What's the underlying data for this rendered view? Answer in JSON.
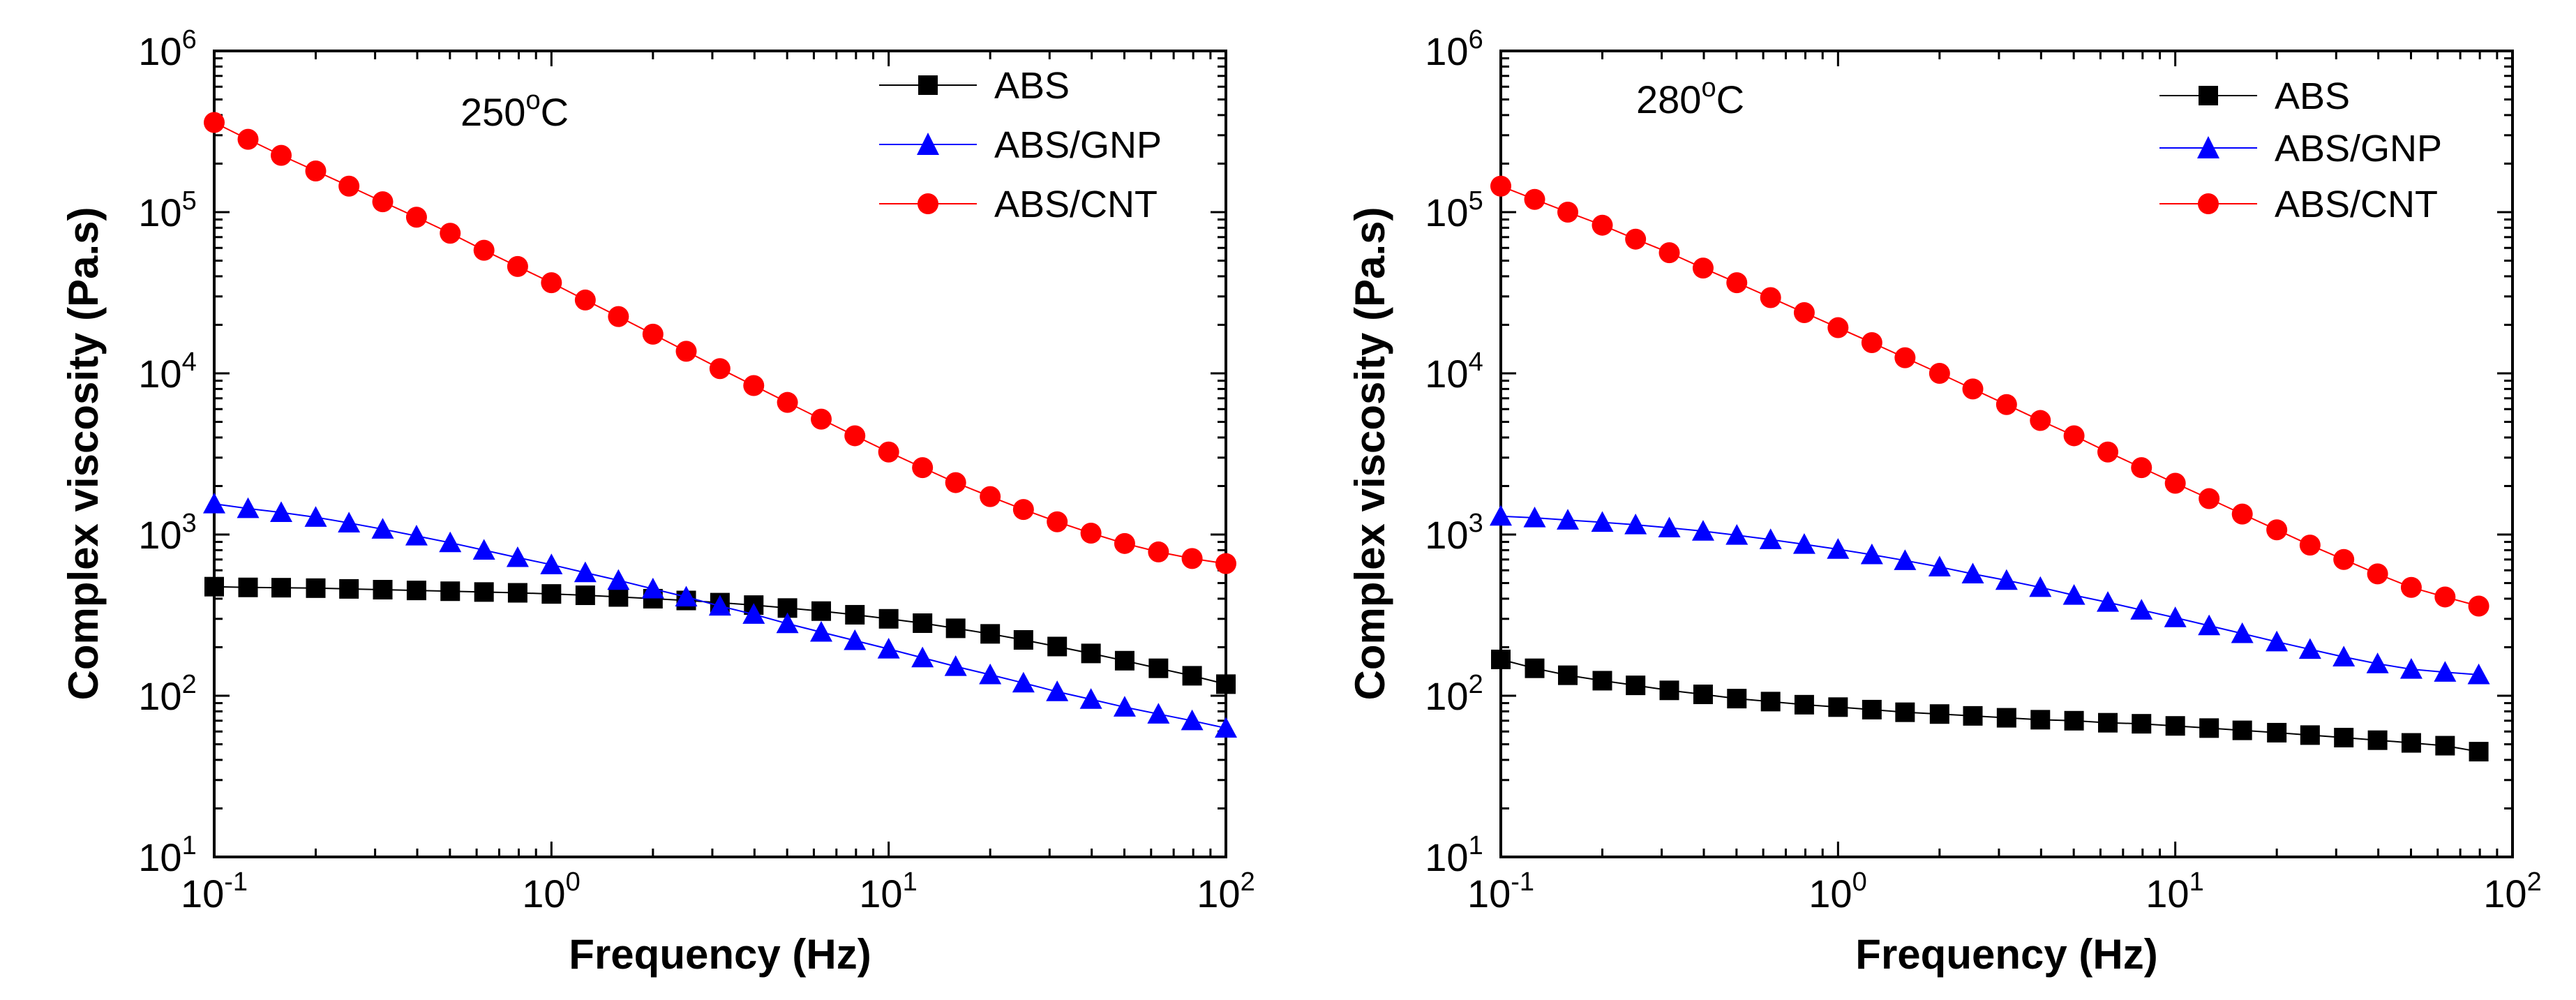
{
  "chart_data": [
    {
      "type": "line",
      "title": "",
      "annotation": "250",
      "annotation_unit": "C",
      "annotation_degree": "o",
      "xlabel": "Frequency (Hz)",
      "ylabel": "Complex viscosity (Pa.s)",
      "xscale": "log",
      "yscale": "log",
      "xlim": [
        0.1,
        100
      ],
      "ylim": [
        10,
        1000000
      ],
      "x_ticks": [
        {
          "base": "10",
          "exp": "-1",
          "value": 0.1
        },
        {
          "base": "10",
          "exp": "0",
          "value": 1
        },
        {
          "base": "10",
          "exp": "1",
          "value": 10
        },
        {
          "base": "10",
          "exp": "2",
          "value": 100
        }
      ],
      "y_ticks": [
        {
          "base": "10",
          "exp": "1",
          "value": 10
        },
        {
          "base": "10",
          "exp": "2",
          "value": 100
        },
        {
          "base": "10",
          "exp": "3",
          "value": 1000
        },
        {
          "base": "10",
          "exp": "4",
          "value": 10000
        },
        {
          "base": "10",
          "exp": "5",
          "value": 100000
        },
        {
          "base": "10",
          "exp": "6",
          "value": 1000000
        }
      ],
      "legend_position": "top-right",
      "x": [
        0.1,
        0.126,
        0.158,
        0.2,
        0.251,
        0.316,
        0.398,
        0.501,
        0.631,
        0.794,
        1.0,
        1.26,
        1.58,
        2.0,
        2.51,
        3.16,
        3.98,
        5.01,
        6.31,
        7.94,
        10.0,
        12.6,
        15.8,
        20.0,
        25.1,
        31.6,
        39.8,
        50.1,
        63.1,
        79.4,
        100.0
      ],
      "series": [
        {
          "name": "ABS",
          "marker": "square",
          "color": "#000000",
          "values": [
            475,
            470,
            468,
            465,
            460,
            455,
            450,
            445,
            440,
            435,
            428,
            420,
            410,
            400,
            390,
            378,
            365,
            350,
            335,
            318,
            300,
            282,
            262,
            242,
            222,
            202,
            183,
            165,
            148,
            133,
            118
          ]
        },
        {
          "name": "ABS/GNP",
          "marker": "triangle",
          "color": "#0000ff",
          "values": [
            1550,
            1450,
            1370,
            1280,
            1180,
            1080,
            980,
            890,
            800,
            720,
            650,
            580,
            520,
            460,
            410,
            360,
            320,
            280,
            248,
            220,
            195,
            172,
            152,
            135,
            120,
            106,
            95,
            85,
            77,
            70,
            63
          ]
        },
        {
          "name": "ABS/CNT",
          "marker": "circle",
          "color": "#ff0000",
          "values": [
            360000,
            283000,
            225000,
            180000,
            145000,
            116000,
            93000,
            74000,
            58000,
            46000,
            36500,
            28500,
            22500,
            17500,
            13700,
            10700,
            8400,
            6600,
            5200,
            4100,
            3250,
            2600,
            2100,
            1720,
            1430,
            1200,
            1020,
            880,
            780,
            710,
            660
          ]
        }
      ]
    },
    {
      "type": "line",
      "title": "",
      "annotation": "280",
      "annotation_unit": "C",
      "annotation_degree": "o",
      "xlabel": "Frequency (Hz)",
      "ylabel": "Complex viscosity (Pa.s)",
      "xscale": "log",
      "yscale": "log",
      "xlim": [
        0.1,
        100
      ],
      "ylim": [
        10,
        1000000
      ],
      "x_ticks": [
        {
          "base": "10",
          "exp": "-1",
          "value": 0.1
        },
        {
          "base": "10",
          "exp": "0",
          "value": 1
        },
        {
          "base": "10",
          "exp": "1",
          "value": 10
        },
        {
          "base": "10",
          "exp": "2",
          "value": 100
        }
      ],
      "y_ticks": [
        {
          "base": "10",
          "exp": "1",
          "value": 10
        },
        {
          "base": "10",
          "exp": "2",
          "value": 100
        },
        {
          "base": "10",
          "exp": "3",
          "value": 1000
        },
        {
          "base": "10",
          "exp": "4",
          "value": 10000
        },
        {
          "base": "10",
          "exp": "5",
          "value": 100000
        },
        {
          "base": "10",
          "exp": "6",
          "value": 1000000
        }
      ],
      "legend_position": "top-right",
      "x": [
        0.1,
        0.126,
        0.158,
        0.2,
        0.251,
        0.316,
        0.398,
        0.501,
        0.631,
        0.794,
        1.0,
        1.26,
        1.58,
        2.0,
        2.51,
        3.16,
        3.98,
        5.01,
        6.31,
        7.94,
        10.0,
        12.6,
        15.8,
        20.0,
        25.1,
        31.6,
        39.8,
        50.1,
        63.1,
        79.4
      ],
      "series": [
        {
          "name": "ABS",
          "marker": "square",
          "color": "#000000",
          "values": [
            168,
            148,
            134,
            124,
            116,
            108,
            102,
            96,
            92,
            88,
            85,
            82,
            79,
            77,
            75,
            73,
            71,
            70,
            68,
            67,
            65,
            63,
            61,
            59,
            57,
            55,
            53,
            51,
            49,
            45
          ]
        },
        {
          "name": "ABS/GNP",
          "marker": "triangle",
          "color": "#0000ff",
          "values": [
            1300,
            1270,
            1230,
            1190,
            1150,
            1100,
            1050,
            990,
            930,
            870,
            810,
            750,
            690,
            630,
            570,
            520,
            470,
            420,
            380,
            340,
            305,
            272,
            243,
            216,
            194,
            174,
            158,
            146,
            140,
            135
          ]
        },
        {
          "name": "ABS/CNT",
          "marker": "circle",
          "color": "#ff0000",
          "values": [
            145000,
            120000,
            100000,
            83000,
            68000,
            56000,
            45000,
            36500,
            29500,
            23800,
            19200,
            15500,
            12500,
            10000,
            8000,
            6400,
            5100,
            4100,
            3250,
            2600,
            2080,
            1670,
            1340,
            1070,
            860,
            700,
            570,
            470,
            410,
            360
          ]
        }
      ]
    }
  ]
}
